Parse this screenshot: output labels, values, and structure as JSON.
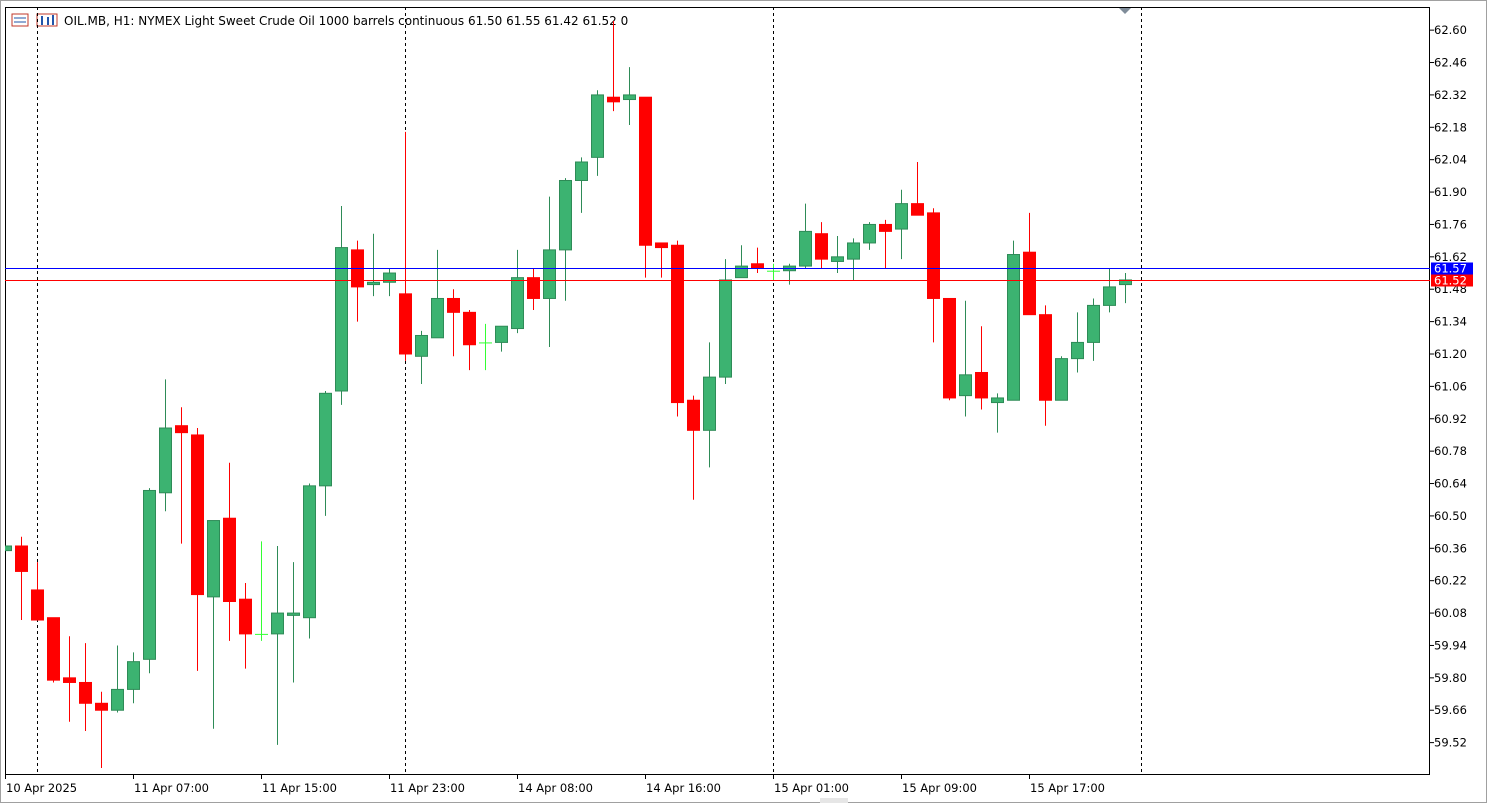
{
  "chart_data": {
    "type": "candlestick",
    "title": "OIL.MB, H1:  NYMEX Light Sweet Crude Oil 1000 barrels continuous  61.50 61.55 61.42 61.52  0",
    "open": [
      60.35,
      60.37,
      60.18,
      60.06,
      59.8,
      59.78,
      59.69,
      59.66,
      59.75,
      59.88,
      60.6,
      60.89,
      60.85,
      60.15,
      60.49,
      60.14,
      59.99,
      59.99,
      60.07,
      60.06,
      60.63,
      61.04,
      61.65,
      61.5,
      61.51,
      61.46,
      61.19,
      61.27,
      61.44,
      61.38,
      61.25,
      61.25,
      61.31,
      61.53,
      61.44,
      61.65,
      61.95,
      62.05,
      62.31,
      62.3,
      62.31,
      61.68,
      61.67,
      61.0,
      60.87,
      61.1,
      61.53,
      61.59,
      61.56,
      61.56,
      61.58,
      61.72,
      61.6,
      61.61,
      61.68,
      61.76,
      61.74,
      61.85,
      61.81,
      61.44,
      61.02,
      61.12,
      60.99,
      61.0,
      61.64,
      61.37,
      61.0,
      61.18,
      61.25,
      61.41,
      61.5
    ],
    "high": [
      60.37,
      60.41,
      60.3,
      60.06,
      59.98,
      59.95,
      59.74,
      59.94,
      59.91,
      60.62,
      61.09,
      60.97,
      60.88,
      60.48,
      60.73,
      60.21,
      60.39,
      60.37,
      60.3,
      60.64,
      61.04,
      61.84,
      61.69,
      61.72,
      61.57,
      62.16,
      61.3,
      61.65,
      61.48,
      61.39,
      61.33,
      61.32,
      61.65,
      61.57,
      61.88,
      61.96,
      62.05,
      62.34,
      62.64,
      62.44,
      62.31,
      61.68,
      61.69,
      61.02,
      61.25,
      61.61,
      61.67,
      61.66,
      61.59,
      61.59,
      61.85,
      61.77,
      61.71,
      61.7,
      61.77,
      61.78,
      61.91,
      62.03,
      61.83,
      61.44,
      61.43,
      61.32,
      61.03,
      61.69,
      61.81,
      61.41,
      61.19,
      61.38,
      61.44,
      61.57,
      61.55
    ],
    "low": [
      60.35,
      60.05,
      60.05,
      59.78,
      59.61,
      59.57,
      59.41,
      59.65,
      59.69,
      59.82,
      60.52,
      60.38,
      59.83,
      59.58,
      59.96,
      59.84,
      59.96,
      59.51,
      59.78,
      59.97,
      60.5,
      60.98,
      61.34,
      61.45,
      61.45,
      61.17,
      61.07,
      61.27,
      61.19,
      61.13,
      61.13,
      61.21,
      61.29,
      61.39,
      61.23,
      61.43,
      61.81,
      61.97,
      62.25,
      62.19,
      61.53,
      61.53,
      60.93,
      60.57,
      60.71,
      61.07,
      61.53,
      61.55,
      61.52,
      61.5,
      61.57,
      61.57,
      61.55,
      61.52,
      61.65,
      61.57,
      61.61,
      61.8,
      61.25,
      61.0,
      60.93,
      60.96,
      60.86,
      61.0,
      61.37,
      60.89,
      61.0,
      61.12,
      61.17,
      61.38,
      61.42
    ],
    "close": [
      60.37,
      60.26,
      60.05,
      59.79,
      59.78,
      59.69,
      59.66,
      59.75,
      59.87,
      60.61,
      60.88,
      60.86,
      60.16,
      60.48,
      60.13,
      59.99,
      59.99,
      60.08,
      60.08,
      60.63,
      61.03,
      61.66,
      61.49,
      61.51,
      61.55,
      61.2,
      61.28,
      61.44,
      61.38,
      61.24,
      61.25,
      61.32,
      61.53,
      61.44,
      61.65,
      61.95,
      62.03,
      62.32,
      62.29,
      62.32,
      61.67,
      61.66,
      60.99,
      60.87,
      61.1,
      61.52,
      61.58,
      61.57,
      61.56,
      61.58,
      61.73,
      61.61,
      61.62,
      61.68,
      61.76,
      61.73,
      61.85,
      61.8,
      61.44,
      61.01,
      61.11,
      61.01,
      61.01,
      61.63,
      61.37,
      61.0,
      61.18,
      61.25,
      61.41,
      61.49,
      61.52
    ],
    "up_color": "#3cb371",
    "up_wick_color": "#2e8b57",
    "down_color": "#ff0000",
    "doji_color": "#33ff33",
    "ask": 61.57,
    "bid": 61.52,
    "ask_color": "#0000ff",
    "bid_color": "#ff0000",
    "ylim": [
      59.38,
      62.7
    ],
    "yticks": [
      {
        "value": 62.6,
        "label": "62.60"
      },
      62.46,
      62.32,
      62.18,
      62.04,
      {
        "value": 61.9,
        "label": "61.90"
      },
      61.76,
      61.62,
      61.48,
      61.34,
      {
        "value": 61.2,
        "label": "61.20"
      },
      61.06,
      60.92,
      60.78,
      60.64,
      {
        "value": 60.5,
        "label": "60.50"
      },
      60.36,
      60.22,
      60.08,
      59.94,
      {
        "value": 59.8,
        "label": "59.80"
      },
      59.66,
      59.52
    ],
    "xticks": [
      {
        "value": 0,
        "label": "10 Apr 2025"
      },
      {
        "value": 8,
        "label": "11 Apr 07:00"
      },
      {
        "value": 16,
        "label": "11 Apr 15:00"
      },
      {
        "value": 24,
        "label": "11 Apr 23:00"
      },
      {
        "value": 32,
        "label": "14 Apr 08:00"
      },
      {
        "value": 40,
        "label": "14 Apr 16:00"
      },
      {
        "value": 48,
        "label": "15 Apr 01:00"
      },
      {
        "value": 56,
        "label": "15 Apr 09:00"
      },
      {
        "value": 64,
        "label": "15 Apr 17:00"
      }
    ]
  }
}
